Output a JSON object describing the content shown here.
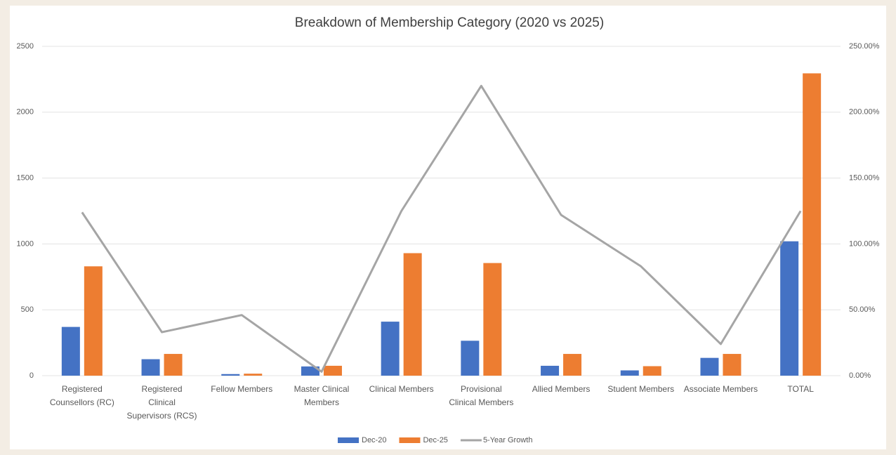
{
  "chart_data": {
    "type": "bar_line",
    "title": "Breakdown of Membership Category (2020 vs 2025)",
    "categories": [
      "Registered Counsellors (RC)",
      "Registered Clinical Supervisors (RCS)",
      "Fellow Members",
      "Master Clinical Members",
      "Clinical Members",
      "Provisional Clinical Members",
      "Allied Members",
      "Student Members",
      "Associate Members",
      "TOTAL"
    ],
    "series": [
      {
        "name": "Dec-20",
        "color": "#4472c4",
        "type": "bar",
        "values": [
          370,
          125,
          12,
          70,
          410,
          265,
          75,
          40,
          135,
          1020
        ]
      },
      {
        "name": "Dec-25",
        "color": "#ed7d31",
        "type": "bar",
        "values": [
          830,
          165,
          15,
          75,
          930,
          855,
          165,
          72,
          165,
          2295
        ]
      },
      {
        "name": "5-Year Growth",
        "color": "#a5a5a5",
        "type": "line",
        "axis": "y2",
        "values": [
          124,
          33,
          46,
          3,
          125,
          220,
          122,
          83,
          24,
          125
        ]
      }
    ],
    "ylim": [
      0,
      2500
    ],
    "yticks": [
      0,
      500,
      1000,
      1500,
      2000,
      2500
    ],
    "y2lim": [
      0,
      250
    ],
    "y2ticks": [
      {
        "value": 0,
        "label": "0.00%"
      },
      {
        "value": 50,
        "label": "50.00%"
      },
      {
        "value": 100,
        "label": "100.00%"
      },
      {
        "value": 150,
        "label": "150.00%"
      },
      {
        "value": 200,
        "label": "200.00%"
      },
      {
        "value": 250,
        "label": "250.00%"
      }
    ],
    "grid": true,
    "legend": "bottom"
  }
}
